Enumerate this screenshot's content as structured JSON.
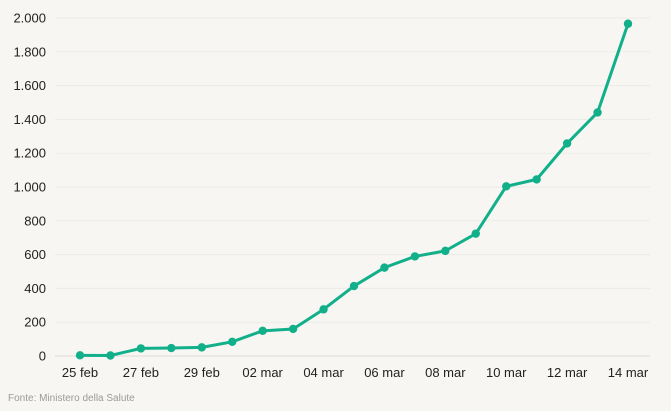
{
  "chart_data": {
    "type": "line",
    "title": "",
    "xlabel": "",
    "ylabel": "",
    "x": [
      "25 feb",
      "26 feb",
      "27 feb",
      "28 feb",
      "29 feb",
      "01 mar",
      "02 mar",
      "03 mar",
      "04 mar",
      "05 mar",
      "06 mar",
      "07 mar",
      "08 mar",
      "09 mar",
      "10 mar",
      "11 mar",
      "12 mar",
      "13 mar",
      "14 mar"
    ],
    "x_tick_labels": [
      "25 feb",
      "27 feb",
      "29 feb",
      "02 mar",
      "04 mar",
      "06 mar",
      "08 mar",
      "10 mar",
      "12 mar",
      "14 mar"
    ],
    "series": [
      {
        "values": [
          4,
          3,
          45,
          47,
          51,
          84,
          149,
          160,
          276,
          414,
          523,
          589,
          622,
          724,
          1004,
          1045,
          1258,
          1441,
          1966
        ],
        "color": "#12b08a"
      }
    ],
    "ylim": [
      0,
      2000
    ],
    "y_ticks": [
      0,
      200,
      400,
      600,
      800,
      1000,
      1200,
      1400,
      1600,
      1800,
      2000
    ],
    "y_tick_labels": [
      "0",
      "200",
      "400",
      "600",
      "800",
      "1.000",
      "1.200",
      "1.400",
      "1.600",
      "1.800",
      "2.000"
    ],
    "grid": true,
    "legend": "none"
  },
  "source_text": "Fonte: Ministero della Salute"
}
